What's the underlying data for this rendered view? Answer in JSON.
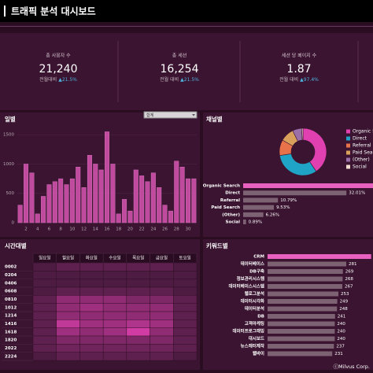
{
  "header": {
    "title": "트래픽 분석 대시보드"
  },
  "kpis": [
    {
      "label": "총 사용자 수",
      "value": "21,240",
      "change_label": "전월대비",
      "change": "▲21.5%"
    },
    {
      "label": "총 세션",
      "value": "16,254",
      "change_label": "전월 대비",
      "change": "▲21.5%"
    },
    {
      "label": "세션 당 페이지 수",
      "value": "1.87",
      "change_label": "전월 대비",
      "change": "▲97.4%"
    }
  ],
  "footer": "ⓒMilvus Corp.",
  "chart_data": [
    {
      "type": "bar",
      "title": "일별",
      "dropdown": "합계",
      "categories": [
        null,
        "2",
        null,
        "4",
        null,
        "6",
        null,
        "8",
        null,
        "10",
        null,
        "12",
        null,
        "14",
        null,
        "16",
        null,
        "18",
        null,
        "20",
        null,
        "22",
        null,
        "24",
        null,
        "26",
        null,
        "28",
        null,
        "30",
        null
      ],
      "values": [
        300,
        1000,
        850,
        150,
        450,
        650,
        700,
        750,
        650,
        750,
        950,
        600,
        1150,
        1000,
        900,
        1550,
        1000,
        150,
        400,
        200,
        900,
        800,
        700,
        850,
        600,
        300,
        200,
        1050,
        950,
        750,
        750
      ],
      "color": "#c04b9e",
      "ylim": [
        0,
        1650
      ],
      "yticks": [
        0,
        500,
        1000,
        1500
      ],
      "grid": true
    },
    {
      "type": "donut",
      "title": "채널별",
      "categories": [
        "Organic Search",
        "Direct",
        "Referral",
        "Paid Search",
        "(Other)",
        "Social"
      ],
      "values": [
        40.52,
        32.01,
        10.79,
        9.53,
        6.26,
        0.89
      ],
      "value_labels": [
        null,
        "32.01%",
        "10.79%",
        "9.53%",
        "6.26%",
        "0.89%"
      ],
      "colors": [
        "#e040b0",
        "#1fa3c6",
        "#e8734a",
        "#d9a05c",
        "#9b6fa8",
        "#f2dccd"
      ],
      "bar_colors": [
        "#e860c0",
        "#7d6274",
        "#7d6274",
        "#7d6274",
        "#7d6274",
        "#7d6274"
      ]
    },
    {
      "type": "heatmap",
      "title": "시간대별",
      "x_categories": [
        "일요일",
        "월요일",
        "화요일",
        "수요일",
        "목요일",
        "금요일",
        "토요일"
      ],
      "y_categories": [
        "0002",
        "0204",
        "0406",
        "0608",
        "0810",
        "1012",
        "1214",
        "1416",
        "1618",
        "1820",
        "2022",
        "2224"
      ],
      "values": [
        [
          1,
          2,
          2,
          2,
          2,
          2,
          1
        ],
        [
          1,
          1,
          1,
          1,
          1,
          1,
          1
        ],
        [
          1,
          1,
          1,
          1,
          1,
          1,
          1
        ],
        [
          1,
          2,
          2,
          2,
          2,
          2,
          1
        ],
        [
          2,
          5,
          5,
          5,
          4,
          4,
          2
        ],
        [
          2,
          5,
          6,
          5,
          5,
          5,
          2
        ],
        [
          2,
          5,
          5,
          5,
          5,
          5,
          2
        ],
        [
          2,
          8,
          6,
          6,
          7,
          6,
          2
        ],
        [
          2,
          6,
          5,
          6,
          9,
          5,
          2
        ],
        [
          2,
          4,
          4,
          4,
          4,
          4,
          2
        ],
        [
          2,
          3,
          3,
          3,
          3,
          3,
          2
        ],
        [
          1,
          2,
          2,
          2,
          2,
          2,
          1
        ]
      ],
      "vlim": [
        0,
        10
      ],
      "color_low": "#3e1836",
      "color_high": "#e040b0"
    },
    {
      "type": "barh",
      "title": "키워드별",
      "categories": [
        "CRM",
        "데이터베이스",
        "DB구축",
        "정보관리시스템",
        "데이터베이스시스템",
        "웹로그분석",
        "데이터시각화",
        "데이터분석",
        "DB",
        "고객마케팅",
        "데이터프로그래밍",
        "대시보드",
        "뉴스레터제작",
        "웹바이"
      ],
      "values": [
        370,
        281,
        269,
        268,
        267,
        253,
        249,
        248,
        241,
        240,
        240,
        240,
        237,
        231
      ],
      "colors": [
        "#e860c0",
        "#7d6274",
        "#7d6274",
        "#7d6274",
        "#7d6274",
        "#7d6274",
        "#7d6274",
        "#7d6274",
        "#7d6274",
        "#7d6274",
        "#7d6274",
        "#7d6274",
        "#7d6274",
        "#7d6274"
      ]
    }
  ]
}
